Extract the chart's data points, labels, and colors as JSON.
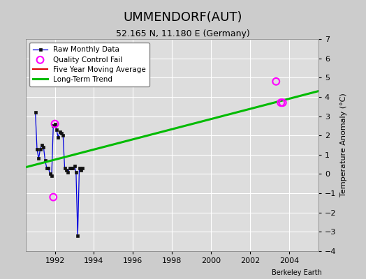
{
  "title": "UMMENDORF(AUT)",
  "subtitle": "52.165 N, 11.180 E (Germany)",
  "credit": "Berkeley Earth",
  "ylabel": "Temperature Anomaly (°C)",
  "xlim": [
    1990.5,
    2005.5
  ],
  "ylim": [
    -4,
    7
  ],
  "yticks": [
    -4,
    -3,
    -2,
    -1,
    0,
    1,
    2,
    3,
    4,
    5,
    6,
    7
  ],
  "xticks": [
    1992,
    1994,
    1996,
    1998,
    2000,
    2002,
    2004
  ],
  "background_color": "#cccccc",
  "plot_bg_color": "#dddddd",
  "grid_color": "#ffffff",
  "raw_x": [
    1991.0,
    1991.083,
    1991.167,
    1991.25,
    1991.333,
    1991.417,
    1991.5,
    1991.583,
    1991.667,
    1991.75,
    1991.833,
    1991.917,
    1992.0,
    1992.083,
    1992.167,
    1992.25,
    1992.333,
    1992.417,
    1992.5,
    1992.583,
    1992.667,
    1992.75,
    1992.833,
    1992.917,
    1993.0,
    1993.083,
    1993.167,
    1993.25,
    1993.333,
    1993.417
  ],
  "raw_y": [
    3.2,
    1.3,
    0.8,
    1.3,
    1.5,
    1.4,
    0.7,
    0.3,
    0.3,
    0.0,
    -0.1,
    2.5,
    2.6,
    2.3,
    1.9,
    2.2,
    2.1,
    2.0,
    0.3,
    0.2,
    0.1,
    0.3,
    0.3,
    0.3,
    0.4,
    0.1,
    -3.2,
    0.3,
    0.2,
    0.3
  ],
  "qc_fail_x": [
    1991.917,
    1992.0,
    2003.33,
    2003.58,
    2003.67
  ],
  "qc_fail_y": [
    -1.2,
    2.6,
    4.8,
    3.7,
    3.7
  ],
  "trend_x": [
    1990.5,
    2005.5
  ],
  "trend_y": [
    0.35,
    4.3
  ],
  "raw_color": "#0000dd",
  "raw_marker_color": "#111111",
  "qc_color": "#ff00ff",
  "trend_color": "#00bb00",
  "mavg_color": "#dd0000",
  "legend_bg": "#ffffff",
  "title_fontsize": 13,
  "subtitle_fontsize": 9,
  "label_fontsize": 8,
  "tick_fontsize": 8
}
